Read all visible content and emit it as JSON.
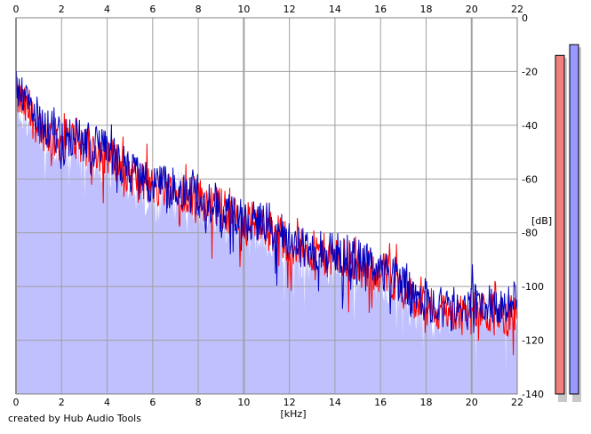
{
  "credit": "created by Hub Audio Tools",
  "chart_data": {
    "type": "area",
    "xlabel": "[kHz]",
    "ylabel": "[dB]",
    "xlim": [
      0,
      22
    ],
    "ylim": [
      -140,
      0
    ],
    "x_ticks": [
      0,
      2,
      4,
      6,
      8,
      10,
      12,
      14,
      16,
      18,
      20,
      22
    ],
    "x_tick_labels": [
      "0",
      "2",
      "4",
      "6",
      "8",
      "10",
      "12",
      "14",
      "16",
      "18",
      "20",
      "22"
    ],
    "y_ticks": [
      0,
      -20,
      -40,
      -60,
      -80,
      -100,
      -120,
      -140
    ],
    "y_tick_labels": [
      "0",
      "-20",
      "-40",
      "-60",
      "-80",
      "-100",
      "-120",
      "-140"
    ],
    "grid": true,
    "area_color": "#c0c0ff",
    "series": [
      {
        "color": "#ff0000",
        "x": [
          0.1,
          0.5,
          1.0,
          1.5,
          2.0,
          2.5,
          3.0,
          3.5,
          4.0,
          4.5,
          5.0,
          5.5,
          6.0,
          6.5,
          7.0,
          7.5,
          8.0,
          8.5,
          9.0,
          9.5,
          10.0,
          10.5,
          11.0,
          11.5,
          12.0,
          12.5,
          13.0,
          13.5,
          14.0,
          14.5,
          15.0,
          15.5,
          16.0,
          16.5,
          17.0,
          17.5,
          18.0,
          18.5,
          19.0,
          19.5,
          20.0,
          20.5,
          21.0,
          21.5,
          22.0
        ],
        "values": [
          -30,
          -35,
          -40,
          -44,
          -46,
          -45,
          -47,
          -49,
          -50,
          -54,
          -58,
          -61,
          -63,
          -63,
          -64,
          -65,
          -67,
          -69,
          -71,
          -74,
          -76,
          -76,
          -78,
          -81,
          -83,
          -86,
          -87,
          -88,
          -89,
          -90,
          -92,
          -94,
          -94,
          -97,
          -100,
          -106,
          -108,
          -109,
          -110,
          -109,
          -110,
          -110,
          -110,
          -111,
          -110
        ]
      },
      {
        "color": "#0000c0",
        "x": [
          0.1,
          0.5,
          1.0,
          1.5,
          2.0,
          2.5,
          3.0,
          3.5,
          4.0,
          4.5,
          5.0,
          5.5,
          6.0,
          6.5,
          7.0,
          7.5,
          8.0,
          8.5,
          9.0,
          9.5,
          10.0,
          10.5,
          11.0,
          11.5,
          12.0,
          12.5,
          13.0,
          13.5,
          14.0,
          14.5,
          15.0,
          15.5,
          16.0,
          16.5,
          17.0,
          17.5,
          18.0,
          18.5,
          19.0,
          19.5,
          20.0,
          20.5,
          21.0,
          21.5,
          22.0
        ],
        "values": [
          -27,
          -33,
          -38,
          -42,
          -45,
          -44,
          -46,
          -48,
          -50,
          -53,
          -57,
          -61,
          -62,
          -63,
          -63,
          -64,
          -66,
          -68,
          -70,
          -73,
          -75,
          -75,
          -77,
          -80,
          -82,
          -85,
          -86,
          -87,
          -88,
          -88,
          -90,
          -92,
          -93,
          -96,
          -99,
          -104,
          -105,
          -106,
          -106,
          -106,
          -106,
          -106,
          -106,
          -106,
          -106
        ]
      }
    ],
    "level_meters": [
      {
        "color": "#f08080",
        "value": -14
      },
      {
        "color": "#9999ff",
        "value": -10
      }
    ]
  }
}
